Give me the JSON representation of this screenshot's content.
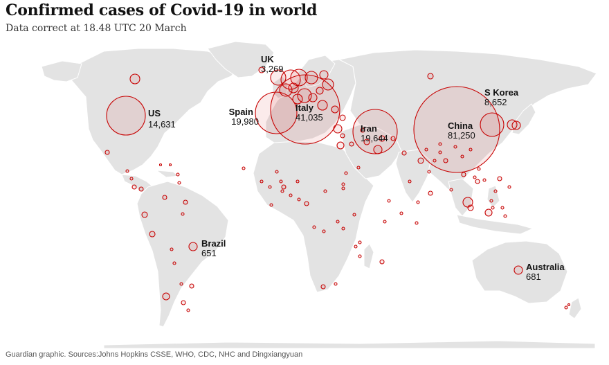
{
  "header": {
    "title": "Confirmed cases of Covid-19 in world",
    "subtitle": "Data correct at 18.48 UTC 20 March"
  },
  "footer": {
    "source": "Guardian graphic. Sources:Johns Hopkins CSSE, WHO, CDC, NHC and Dingxiangyuan"
  },
  "colors": {
    "land": "#e3e3e3",
    "border": "#ffffff",
    "circle_stroke": "#c70000",
    "circle_fill": "rgba(199,0,0,0.08)"
  },
  "map": {
    "projection": "world",
    "labeled_countries": [
      {
        "name": "US",
        "value": "14,631"
      },
      {
        "name": "UK",
        "value": "3,269"
      },
      {
        "name": "Spain",
        "value": "19,980"
      },
      {
        "name": "Italy",
        "value": "41,035"
      },
      {
        "name": "Iran",
        "value": "19,644"
      },
      {
        "name": "China",
        "value": "81,250"
      },
      {
        "name": "S Korea",
        "value": "8,652"
      },
      {
        "name": "Brazil",
        "value": "651"
      },
      {
        "name": "Australia",
        "value": "681"
      }
    ]
  }
}
